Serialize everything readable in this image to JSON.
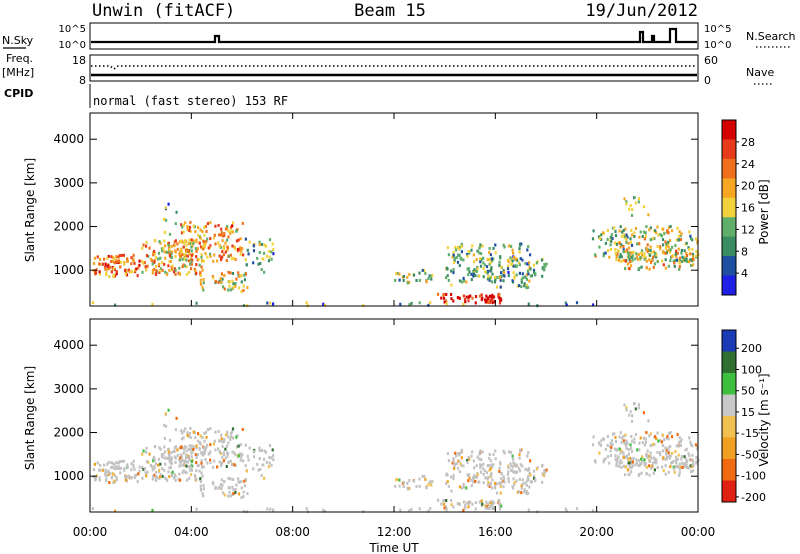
{
  "header": {
    "left": "Unwin (fitACF)",
    "center": "Beam 15",
    "right": "19/Jun/2012"
  },
  "top_panels": {
    "nsky_label": "N.Sky",
    "nsearch_label": "N.Search",
    "nsky_ticks": [
      "10^5",
      "10^0"
    ],
    "freq_label": "Freq.",
    "freq_unit": "[MHz]",
    "freq_ticks": [
      "18",
      "8"
    ],
    "nave_label": "Nave",
    "nave_ticks": [
      "60",
      "0"
    ],
    "cpid_label": "CPID",
    "cpid_text": "normal (fast stereo) 153 RF"
  },
  "colors": {
    "power": [
      "#1f1fe6",
      "#1f4fa0",
      "#3a8c63",
      "#5fae6a",
      "#f2d23c",
      "#f5a623",
      "#ef6f1c",
      "#e63a1a",
      "#d40000"
    ],
    "velocity": [
      "#1a3bb5",
      "#2f6f2f",
      "#3fbf3f",
      "#c8c8c8",
      "#f0c050",
      "#f0a020",
      "#f06a10",
      "#e02010"
    ],
    "grey": "#c2c2c2"
  },
  "chart_data": [
    {
      "type": "heatmap",
      "ylabel": "Slant Range [km]",
      "x_ticks": [
        "00:00",
        "04:00",
        "08:00",
        "12:00",
        "16:00",
        "20:00",
        "00:00"
      ],
      "y_ticks": [
        "1000",
        "2000",
        "3000",
        "4000"
      ],
      "ylim": [
        180,
        4600
      ],
      "colorbar": {
        "label": "Power [dB]",
        "ticks": [
          "4",
          "8",
          "12",
          "16",
          "20",
          "24",
          "28"
        ]
      }
    },
    {
      "type": "heatmap",
      "ylabel": "Slant Range [km]",
      "xlabel": "Time UT",
      "x_ticks": [
        "00:00",
        "04:00",
        "08:00",
        "12:00",
        "16:00",
        "20:00",
        "00:00"
      ],
      "y_ticks": [
        "1000",
        "2000",
        "3000",
        "4000"
      ],
      "ylim": [
        180,
        4600
      ],
      "colorbar": {
        "label": "Velocity [m s⁻¹]",
        "ticks": [
          "200",
          "100",
          "50",
          "15",
          "-15",
          "-50",
          "-100",
          "-200"
        ]
      }
    }
  ]
}
